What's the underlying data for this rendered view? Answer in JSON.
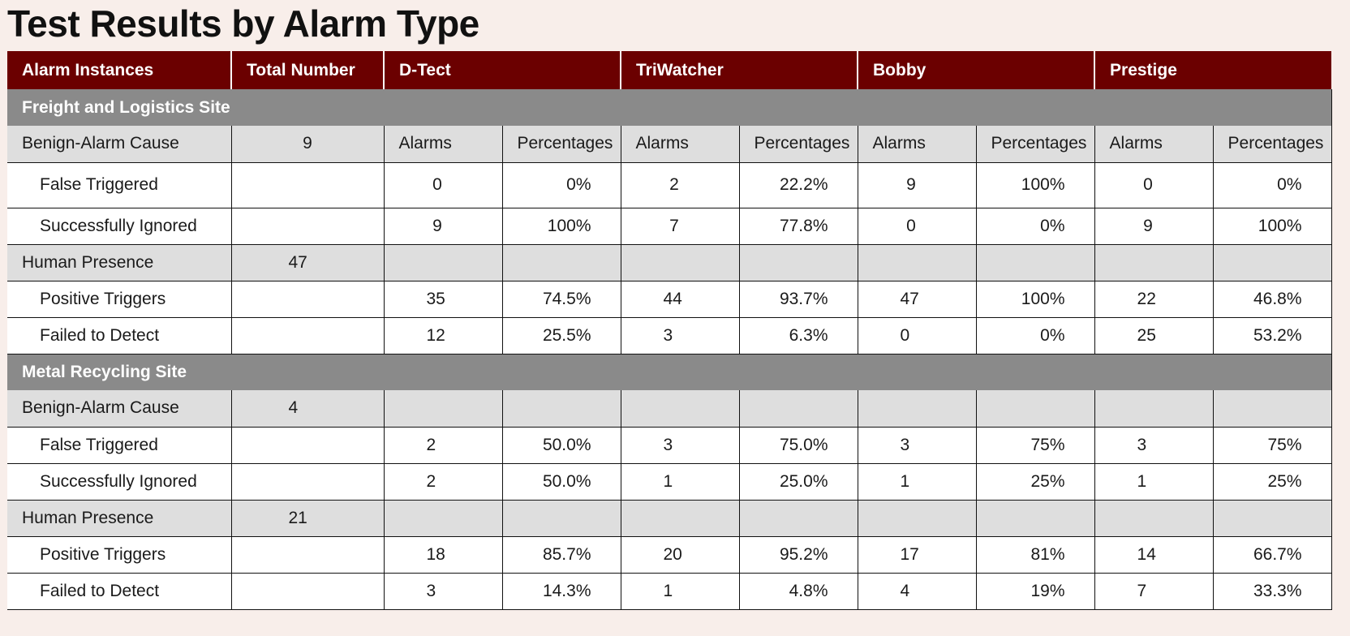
{
  "title": "Test Results by Alarm Type",
  "headers": [
    "Alarm Instances",
    "Total Number",
    "D-Tect",
    "TriWatcher",
    "Bobby",
    "Prestige"
  ],
  "sub_labels": {
    "alarms": "Alarms",
    "percentages": "Percentages"
  },
  "sections": [
    {
      "name": "Freight and Logistics Site",
      "groups": [
        {
          "label": "Benign-Alarm Cause",
          "total": "9",
          "show_subheaders": true,
          "rows": [
            {
              "label": "False Triggered",
              "values": [
                "0",
                "0%",
                "2",
                "22.2%",
                "9",
                "100%",
                "0",
                "0%"
              ]
            },
            {
              "label": "Successfully Ignored",
              "values": [
                "9",
                "100%",
                "7",
                "77.8%",
                "0",
                "0%",
                "9",
                "100%"
              ]
            }
          ]
        },
        {
          "label": "Human Presence",
          "total": "47",
          "show_subheaders": false,
          "rows": [
            {
              "label": "Positive Triggers",
              "values": [
                "35",
                "74.5%",
                "44",
                "93.7%",
                "47",
                "100%",
                "22",
                "46.8%"
              ]
            },
            {
              "label": "Failed to Detect",
              "values": [
                "12",
                "25.5%",
                "3",
                "6.3%",
                "0",
                "0%",
                "25",
                "53.2%"
              ]
            }
          ]
        }
      ]
    },
    {
      "name": "Metal Recycling Site",
      "groups": [
        {
          "label": "Benign-Alarm Cause",
          "total": "4",
          "show_subheaders": false,
          "rows": [
            {
              "label": "False Triggered",
              "values": [
                "2",
                "50.0%",
                "3",
                "75.0%",
                "3",
                "75%",
                "3",
                "75%"
              ]
            },
            {
              "label": "Successfully Ignored",
              "values": [
                "2",
                "50.0%",
                "1",
                "25.0%",
                "1",
                "25%",
                "1",
                "25%"
              ]
            }
          ]
        },
        {
          "label": "Human Presence",
          "total": "21",
          "show_subheaders": false,
          "rows": [
            {
              "label": "Positive Triggers",
              "values": [
                "18",
                "85.7%",
                "20",
                "95.2%",
                "17",
                "81%",
                "14",
                "66.7%"
              ]
            },
            {
              "label": "Failed to Detect",
              "values": [
                "3",
                "14.3%",
                "1",
                "4.8%",
                "4",
                "19%",
                "7",
                "33.3%"
              ]
            }
          ]
        }
      ]
    }
  ]
}
